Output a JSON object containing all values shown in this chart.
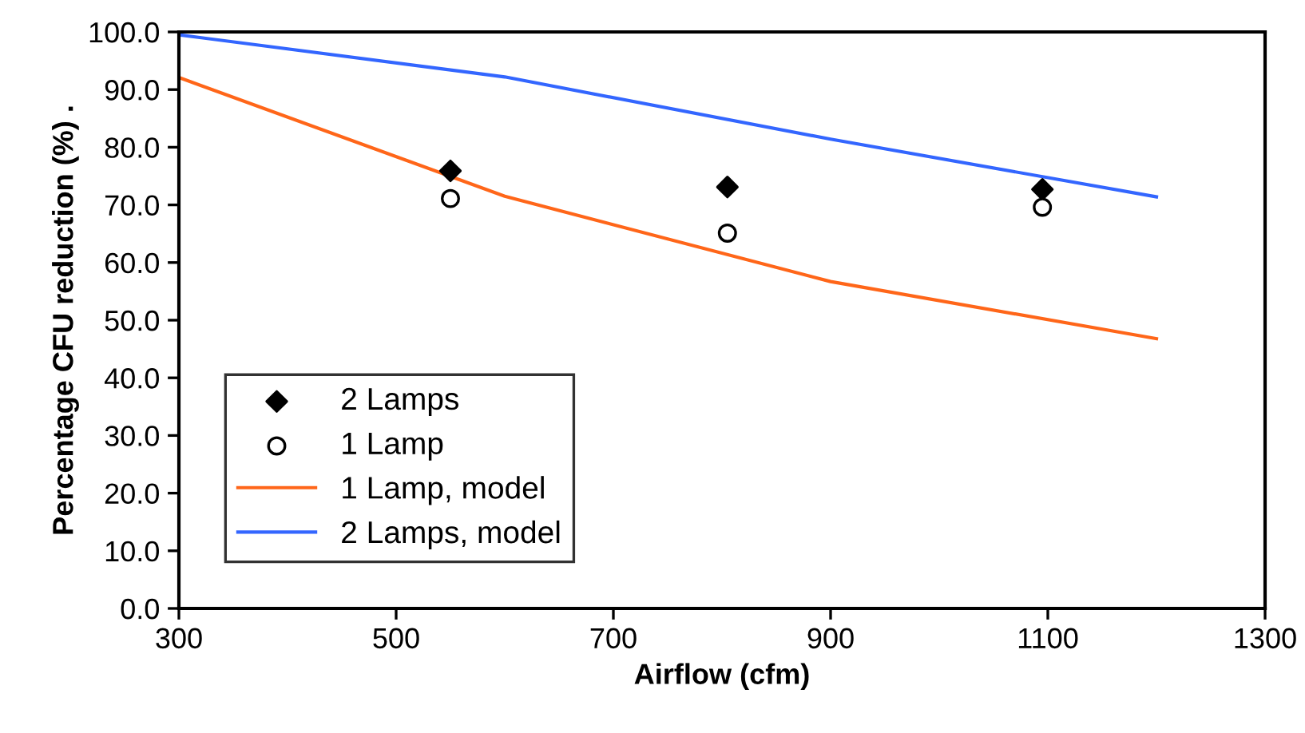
{
  "chart_data": {
    "type": "line",
    "xlabel": "Airflow (cfm)",
    "ylabel": "Percentage CFU reduction (%) .",
    "xlim": [
      300,
      1300
    ],
    "xticks": [
      300,
      500,
      700,
      900,
      1100,
      1300
    ],
    "ylim": [
      0,
      100
    ],
    "yticks": [
      {
        "value": 0,
        "label": "0.0"
      },
      {
        "value": 10,
        "label": "10.0"
      },
      {
        "value": 20,
        "label": "20.0"
      },
      {
        "value": 30,
        "label": "30.0"
      },
      {
        "value": 40,
        "label": "40.0"
      },
      {
        "value": 50,
        "label": "50.0"
      },
      {
        "value": 60,
        "label": "60.0"
      },
      {
        "value": 70,
        "label": "70.0"
      },
      {
        "value": 80,
        "label": "80.0"
      },
      {
        "value": 90,
        "label": "90.0"
      },
      {
        "value": 100,
        "label": "100.0"
      }
    ],
    "grid": false,
    "legend": "bottom left",
    "series": [
      {
        "name": "2 Lamps",
        "type": "scatter",
        "marker": "diamond",
        "color": "#000000",
        "x": [
          550,
          805,
          1095
        ],
        "values": [
          75.9,
          73.1,
          72.7
        ]
      },
      {
        "name": "1 Lamp",
        "type": "scatter",
        "marker": "circle",
        "color": "#ffffff",
        "x": [
          550,
          805,
          1095
        ],
        "values": [
          71.1,
          65.1,
          69.6
        ]
      },
      {
        "name": "1 Lamp, model",
        "color": "#ff6619",
        "x": [
          300,
          600,
          900,
          1200
        ],
        "values": [
          92.1,
          71.5,
          56.7,
          46.8
        ]
      },
      {
        "name": "2 Lamps, model",
        "color": "#3366ff",
        "x": [
          300,
          600,
          900,
          1200
        ],
        "values": [
          99.5,
          92.2,
          81.4,
          71.4
        ]
      }
    ]
  }
}
